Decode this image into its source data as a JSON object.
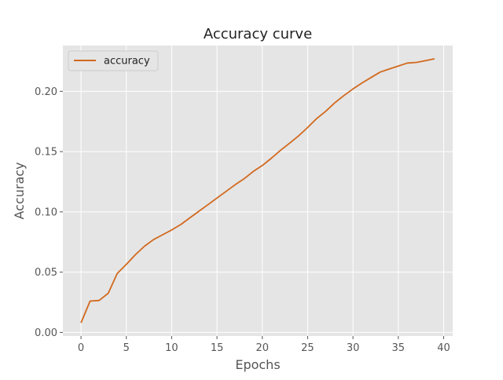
{
  "chart_data": {
    "type": "line",
    "title": "Accuracy curve",
    "xlabel": "Epochs",
    "ylabel": "Accuracy",
    "xlim": [
      -2,
      41
    ],
    "ylim": [
      -0.003,
      0.238
    ],
    "xticks": [
      0,
      5,
      10,
      15,
      20,
      25,
      30,
      35,
      40
    ],
    "yticks": [
      0.0,
      0.05,
      0.1,
      0.15,
      0.2
    ],
    "ytick_labels": [
      "0.00",
      "0.05",
      "0.10",
      "0.15",
      "0.20"
    ],
    "grid": true,
    "legend_position": "top-left",
    "colors": {
      "background": "#e5e5e5",
      "grid": "#ffffff",
      "line": "#d2691e",
      "text": "#555555"
    },
    "series": [
      {
        "name": "accuracy",
        "x": [
          0,
          1,
          2,
          3,
          4,
          5,
          6,
          7,
          8,
          9,
          10,
          11,
          12,
          13,
          14,
          15,
          16,
          17,
          18,
          19,
          20,
          21,
          22,
          23,
          24,
          25,
          26,
          27,
          28,
          29,
          30,
          31,
          32,
          33,
          34,
          35,
          36,
          37,
          38,
          39
        ],
        "values": [
          0.008,
          0.026,
          0.0265,
          0.0325,
          0.049,
          0.0565,
          0.0645,
          0.0715,
          0.077,
          0.081,
          0.085,
          0.0895,
          0.095,
          0.1005,
          0.106,
          0.1115,
          0.117,
          0.1225,
          0.1275,
          0.1335,
          0.1385,
          0.1445,
          0.151,
          0.157,
          0.163,
          0.17,
          0.1775,
          0.1835,
          0.1905,
          0.1965,
          0.202,
          0.207,
          0.2115,
          0.216,
          0.2185,
          0.221,
          0.2235,
          0.224,
          0.2255,
          0.227
        ]
      }
    ]
  }
}
